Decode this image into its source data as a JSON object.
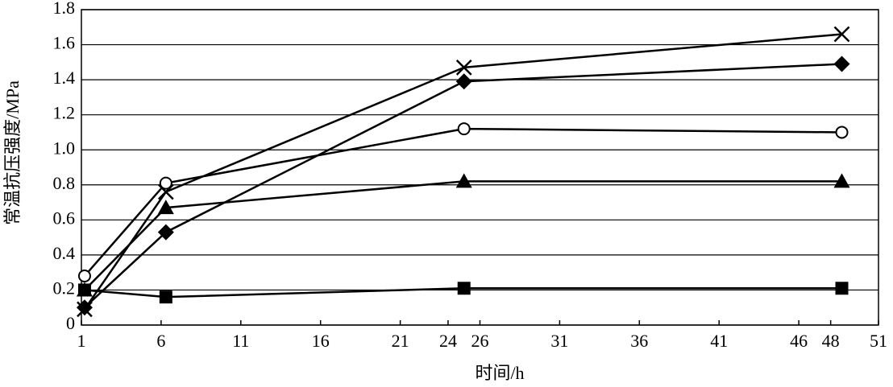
{
  "chart_data": {
    "type": "line",
    "x_label": "时间/h",
    "y_label": "常温抗压强度/MPa",
    "x": [
      1.2,
      6.3,
      25,
      48.7
    ],
    "xlim": [
      1,
      51
    ],
    "xticks": [
      1,
      6,
      11,
      16,
      21,
      24,
      26,
      31,
      36,
      41,
      46,
      48,
      51
    ],
    "ylim": [
      0,
      1.8
    ],
    "yticks": [
      0,
      0.2,
      0.4,
      0.6,
      0.8,
      {
        "value": 1,
        "label": "1.0"
      },
      1.2,
      1.4,
      1.6,
      1.8
    ],
    "grid": true,
    "series": [
      {
        "marker": "x",
        "color": "#000000",
        "values": [
          0.09,
          0.76,
          1.47,
          1.66
        ]
      },
      {
        "marker": "diamond",
        "color": "#000000",
        "values": [
          0.1,
          0.53,
          1.39,
          1.49
        ]
      },
      {
        "marker": "circle",
        "color": "#000000",
        "values": [
          0.28,
          0.81,
          1.12,
          1.1
        ]
      },
      {
        "marker": "triangle",
        "color": "#000000",
        "values": [
          0.2,
          0.67,
          0.82,
          0.82
        ]
      },
      {
        "marker": "square",
        "color": "#000000",
        "values": [
          0.2,
          0.16,
          0.21,
          0.21
        ]
      }
    ]
  }
}
